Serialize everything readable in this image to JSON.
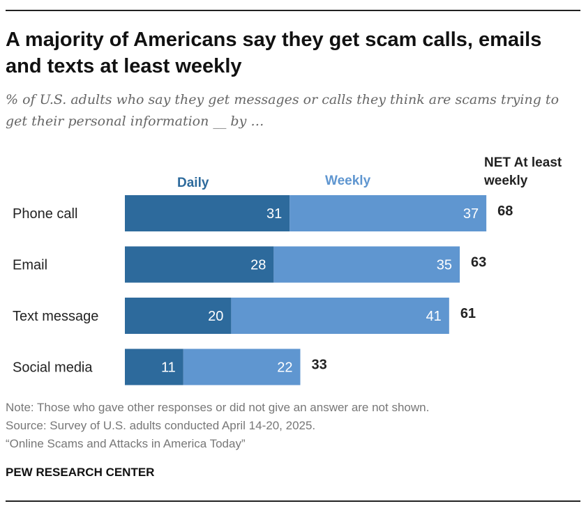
{
  "title": "A majority of Americans say they get scam calls, emails and texts at least weekly",
  "subtitle": "% of U.S. adults who say they get messages or calls they think are scams trying to get their personal information __ by …",
  "headers": {
    "daily": "Daily",
    "weekly": "Weekly",
    "net": "NET At least weekly"
  },
  "colors": {
    "daily": "#2d6a9c",
    "weekly": "#5f96d0"
  },
  "chart_data": {
    "type": "bar",
    "orientation": "horizontal",
    "stacked": true,
    "categories": [
      "Phone call",
      "Email",
      "Text message",
      "Social media"
    ],
    "series": [
      {
        "name": "Daily",
        "values": [
          31,
          28,
          20,
          11
        ]
      },
      {
        "name": "Weekly",
        "values": [
          37,
          35,
          41,
          22
        ]
      }
    ],
    "net_values": [
      68,
      63,
      61,
      33
    ],
    "legend": "top, as column headers",
    "grid": false
  },
  "notes": {
    "note": "Note: Those who gave other responses or did not give an answer are not shown.",
    "source": "Source: Survey of U.S. adults conducted April 14-20, 2025.",
    "report": "“Online Scams and Attacks in America Today”"
  },
  "brand": "PEW RESEARCH CENTER"
}
